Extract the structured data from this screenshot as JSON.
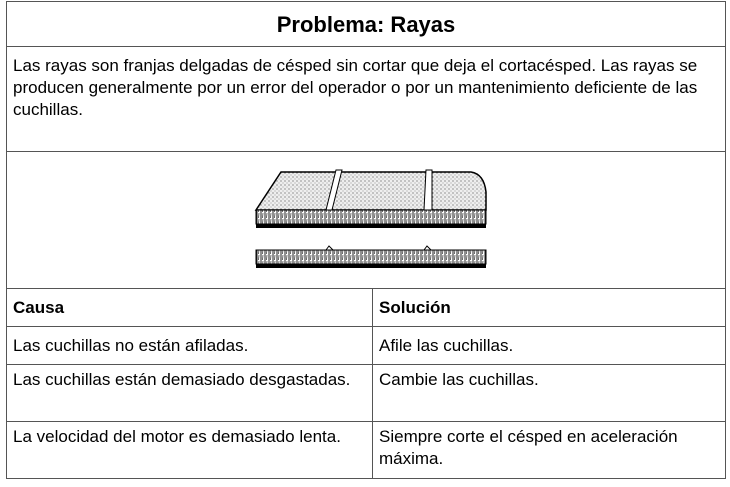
{
  "header": {
    "title": "Problema: Rayas"
  },
  "description": "Las rayas son franjas delgadas de césped sin cortar que deja el cortacésped. Las rayas se producen generalmente por un error del operador o por un mantenimiento deficiente de las cuchillas.",
  "table": {
    "columns": [
      "Causa",
      "Solución"
    ],
    "rows": [
      [
        "Las cuchillas no están afiladas.",
        "Afile las cuchillas."
      ],
      [
        "Las cuchillas están demasiado desgastadas.",
        "Cambie las cuchillas."
      ],
      [
        "La velocidad del motor es demasiado lenta.",
        "Siempre corte el césped en aceleración máxima."
      ]
    ]
  }
}
